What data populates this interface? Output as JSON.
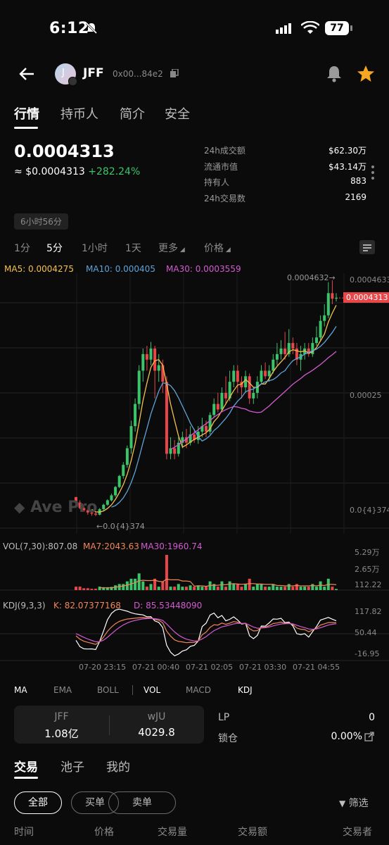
{
  "status": {
    "time": "6:12",
    "battery": "77"
  },
  "nav": {
    "token_symbol": "JFF",
    "address": "0x00...84e2",
    "avatar_letter": "J"
  },
  "tabs": [
    {
      "label": "行情"
    },
    {
      "label": "持币人"
    },
    {
      "label": "简介"
    },
    {
      "label": "安全"
    }
  ],
  "price": {
    "main": "0.0004313",
    "usd": "≈ $0.0004313",
    "change": "+282.24%"
  },
  "stats": [
    {
      "label": "24h成交额",
      "value": "$62.30万"
    },
    {
      "label": "流通市值",
      "value": "$43.14万"
    },
    {
      "label": "持有人",
      "value": "883"
    },
    {
      "label": "24h交易数",
      "value": "2169"
    }
  ],
  "age": "6小时56分",
  "intervals": [
    {
      "label": "1分"
    },
    {
      "label": "5分"
    },
    {
      "label": "1小时"
    },
    {
      "label": "1天"
    },
    {
      "label": "更多"
    },
    {
      "label": "价格"
    }
  ],
  "ma": {
    "ma5": "MA5: 0.0004275",
    "ma10": "MA10: 0.000405",
    "ma30": "MA30: 0.0003559"
  },
  "price_axis": {
    "top": "0.0004633",
    "current": "0.0004313",
    "mid": "0.00025",
    "bottom": "0.0{4}374",
    "high_label": "0.0004632→",
    "low_label": "←0.0{4}374"
  },
  "watermark": "Ave Pro",
  "volume": {
    "label": "VOL(7,30):807.08",
    "ma7": "MA7:2043.63",
    "ma30": "MA30:1960.74",
    "axis": [
      "5.29万",
      "2.65万",
      "112.22"
    ]
  },
  "kdj": {
    "label": "KDJ(9,3,3)",
    "k": "K:  82.07377168",
    "d": "D:  85.53448090",
    "axis": [
      "117.82",
      "50.44",
      "-16.95"
    ]
  },
  "time_axis": [
    "07-20 23:15",
    "07-21 00:40",
    "07-21 02:05",
    "07-21 03:30",
    "07-21 04:55"
  ],
  "indicators": [
    {
      "label": "MA"
    },
    {
      "label": "EMA"
    },
    {
      "label": "BOLL"
    },
    {
      "label": "VOL"
    },
    {
      "label": "MACD"
    },
    {
      "label": "KDJ"
    }
  ],
  "pair": {
    "a_name": "JFF",
    "a_value": "1.08亿",
    "b_name": "wJU",
    "b_value": "4029.8"
  },
  "lp": {
    "label": "LP",
    "value": "0",
    "lock_label": "锁仓",
    "lock_value": "0.00%"
  },
  "bottom_tabs": [
    {
      "label": "交易"
    },
    {
      "label": "池子"
    },
    {
      "label": "我的"
    }
  ],
  "filters": [
    {
      "label": "全部"
    },
    {
      "label": "买单"
    },
    {
      "label": "卖单"
    }
  ],
  "filter_label": "筛选",
  "columns": [
    {
      "label": "时间"
    },
    {
      "label": "价格"
    },
    {
      "label": "交易量"
    },
    {
      "label": "交易额"
    },
    {
      "label": "交易者"
    }
  ],
  "colors": {
    "up": "#3cc46b",
    "down": "#e8474a",
    "ma5": "#f5c04e",
    "ma10": "#5fa3d8",
    "ma30": "#d25bd1"
  },
  "chart_data": {
    "type": "candlestick",
    "x": [
      "07-20 23:15",
      "07-21 00:40",
      "07-21 02:05",
      "07-21 03:30",
      "07-21 04:55"
    ],
    "candles": [
      [
        7.2e-05,
        6.2e-05,
        7e-05,
        6e-05
      ],
      [
        6.2e-05,
        5.2e-05,
        6.6e-05,
        5e-05
      ],
      [
        5.2e-05,
        4.8e-05,
        5.5e-05,
        4.5e-05
      ],
      [
        4.8e-05,
        4.4e-05,
        5e-05,
        4e-05
      ],
      [
        4.4e-05,
        4.2e-05,
        4.6e-05,
        3.8e-05
      ],
      [
        4.2e-05,
        4e-05,
        4.5e-05,
        3.74e-05
      ],
      [
        4e-05,
        5e-05,
        5.2e-05,
        3.9e-05
      ],
      [
        5e-05,
        5.8e-05,
        6e-05,
        4.8e-05
      ],
      [
        5.8e-05,
        6.6e-05,
        6.8e-05,
        5.6e-05
      ],
      [
        6.6e-05,
        7.5e-05,
        7.8e-05,
        6.4e-05
      ],
      [
        7.5e-05,
        9e-05,
        9.2e-05,
        7.2e-05
      ],
      [
        9e-05,
        0.00011,
        0.000112,
        8.8e-05
      ],
      [
        0.00011,
        0.00013,
        0.000135,
        0.000105
      ],
      [
        0.00013,
        0.00016,
        0.000165,
        0.000125
      ],
      [
        0.00016,
        0.0002,
        0.00021,
        0.00015
      ],
      [
        0.0002,
        0.00024,
        0.00025,
        0.00019
      ],
      [
        0.00024,
        0.0003,
        0.00031,
        0.00023
      ],
      [
        0.0003,
        0.00033,
        0.00034,
        0.00028
      ],
      [
        0.00033,
        0.00032,
        0.000345,
        0.0003
      ],
      [
        0.00032,
        0.00034,
        0.000352,
        0.00031
      ],
      [
        0.00034,
        0.0003,
        0.000345,
        0.00025
      ],
      [
        0.0003,
        0.00031,
        0.00033,
        0.00028
      ],
      [
        0.00031,
        0.00028,
        0.00032,
        0.00026
      ],
      [
        0.00028,
        0.00015,
        0.00029,
        0.00014
      ],
      [
        0.00015,
        0.00016,
        0.00018,
        0.00014
      ],
      [
        0.00016,
        0.00015,
        0.000175,
        0.00014
      ],
      [
        0.00015,
        0.00017,
        0.00018,
        0.000145
      ],
      [
        0.00017,
        0.00018,
        0.00019,
        0.00016
      ],
      [
        0.00018,
        0.00017,
        0.000195,
        0.00016
      ],
      [
        0.00017,
        0.000185,
        0.0002,
        0.000165
      ],
      [
        0.000185,
        0.000175,
        0.000195,
        0.00017
      ],
      [
        0.000175,
        0.00019,
        0.0002,
        0.000168
      ],
      [
        0.00019,
        0.0002,
        0.000215,
        0.00018
      ],
      [
        0.0002,
        0.00019,
        0.00021,
        0.00018
      ],
      [
        0.00019,
        0.00022,
        0.000225,
        0.000185
      ],
      [
        0.00022,
        0.00024,
        0.00025,
        0.000215
      ],
      [
        0.00024,
        0.00023,
        0.00026,
        0.000225
      ],
      [
        0.00023,
        0.00026,
        0.00027,
        0.000225
      ],
      [
        0.00026,
        0.00025,
        0.00029,
        0.00024
      ],
      [
        0.00025,
        0.00028,
        0.0003,
        0.000245
      ],
      [
        0.00028,
        0.0003,
        0.00031,
        0.00027
      ],
      [
        0.0003,
        0.00028,
        0.00031,
        0.00026
      ],
      [
        0.00028,
        0.00027,
        0.00029,
        0.00025
      ],
      [
        0.00027,
        0.00029,
        0.0003,
        0.00026
      ],
      [
        0.00029,
        0.00025,
        0.000295,
        0.00024
      ],
      [
        0.00025,
        0.00026,
        0.00027,
        0.00024
      ],
      [
        0.00026,
        0.00028,
        0.00029,
        0.00025
      ],
      [
        0.00028,
        0.0003,
        0.00031,
        0.000275
      ],
      [
        0.0003,
        0.00029,
        0.000315,
        0.000285
      ],
      [
        0.00029,
        0.0003,
        0.00031,
        0.00028
      ],
      [
        0.0003,
        0.00032,
        0.00033,
        0.000295
      ],
      [
        0.00032,
        0.00033,
        0.00035,
        0.00031
      ],
      [
        0.00033,
        0.00034,
        0.000355,
        0.00032
      ],
      [
        0.00034,
        0.00033,
        0.00037,
        0.00032
      ],
      [
        0.00033,
        0.00035,
        0.000375,
        0.000325
      ],
      [
        0.00035,
        0.00034,
        0.00036,
        0.00033
      ],
      [
        0.00034,
        0.00032,
        0.00035,
        0.00031
      ],
      [
        0.00032,
        0.00033,
        0.000345,
        0.0003
      ],
      [
        0.00033,
        0.00034,
        0.00035,
        0.00032
      ],
      [
        0.00034,
        0.00033,
        0.00035,
        0.000325
      ],
      [
        0.00033,
        0.00035,
        0.00036,
        0.000325
      ],
      [
        0.00035,
        0.00036,
        0.00038,
        0.000345
      ],
      [
        0.00036,
        0.00039,
        0.0004,
        0.000355
      ],
      [
        0.00039,
        0.0004,
        0.00042,
        0.00038
      ],
      [
        0.0004,
        0.00044,
        0.00046,
        0.000395
      ],
      [
        0.00044,
        0.00043,
        0.0004632,
        0.00042
      ],
      [
        0.00043,
        0.0004313,
        0.00044,
        0.000425
      ]
    ],
    "ma5": [],
    "ylim": [
      3.74e-05,
      0.0004633
    ]
  }
}
